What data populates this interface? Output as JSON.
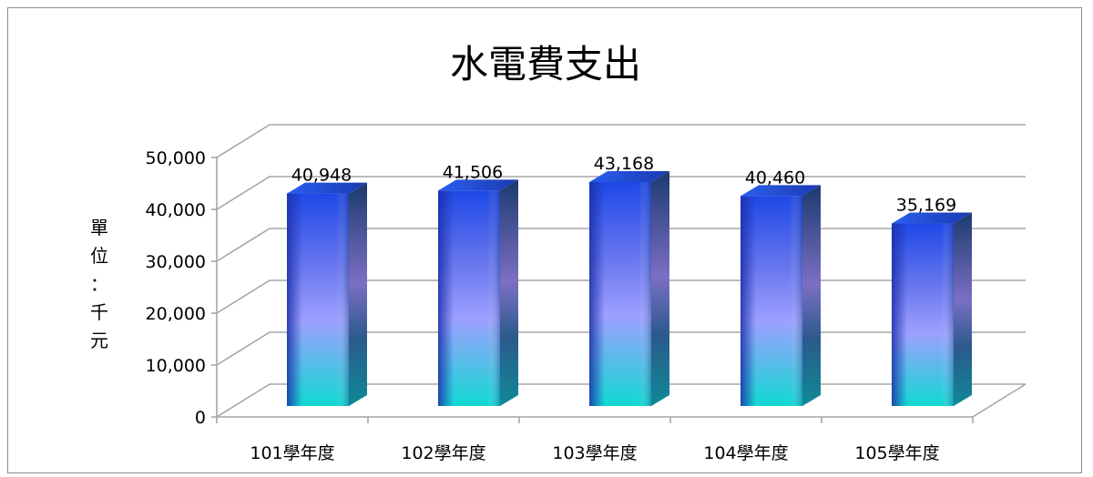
{
  "chart_data": {
    "type": "bar",
    "title": "水電費支出",
    "ylabel": "單位：千元",
    "categories": [
      "101學年度",
      "102學年度",
      "103學年度",
      "104學年度",
      "105學年度"
    ],
    "series": [
      {
        "values": [
          40948,
          41506,
          43168,
          40460,
          35169
        ]
      }
    ],
    "data_labels": [
      "40,948",
      "41,506",
      "43,168",
      "40,460",
      "35,169"
    ],
    "ylim": [
      0,
      50000
    ],
    "yticks": [
      0,
      10000,
      20000,
      30000,
      40000,
      50000
    ],
    "ytick_labels": [
      "0",
      "10,000",
      "20,000",
      "30,000",
      "40,000",
      "50,000"
    ],
    "grid": true,
    "legend": "none",
    "style": "3d-column",
    "colors": {
      "bar_front_top": "#1f4fe0",
      "bar_front_mid": "#9a9cff",
      "bar_front_bottom": "#12d6d2",
      "bar_side": "#1e3f8a",
      "grid": "#a6a6a6"
    }
  }
}
